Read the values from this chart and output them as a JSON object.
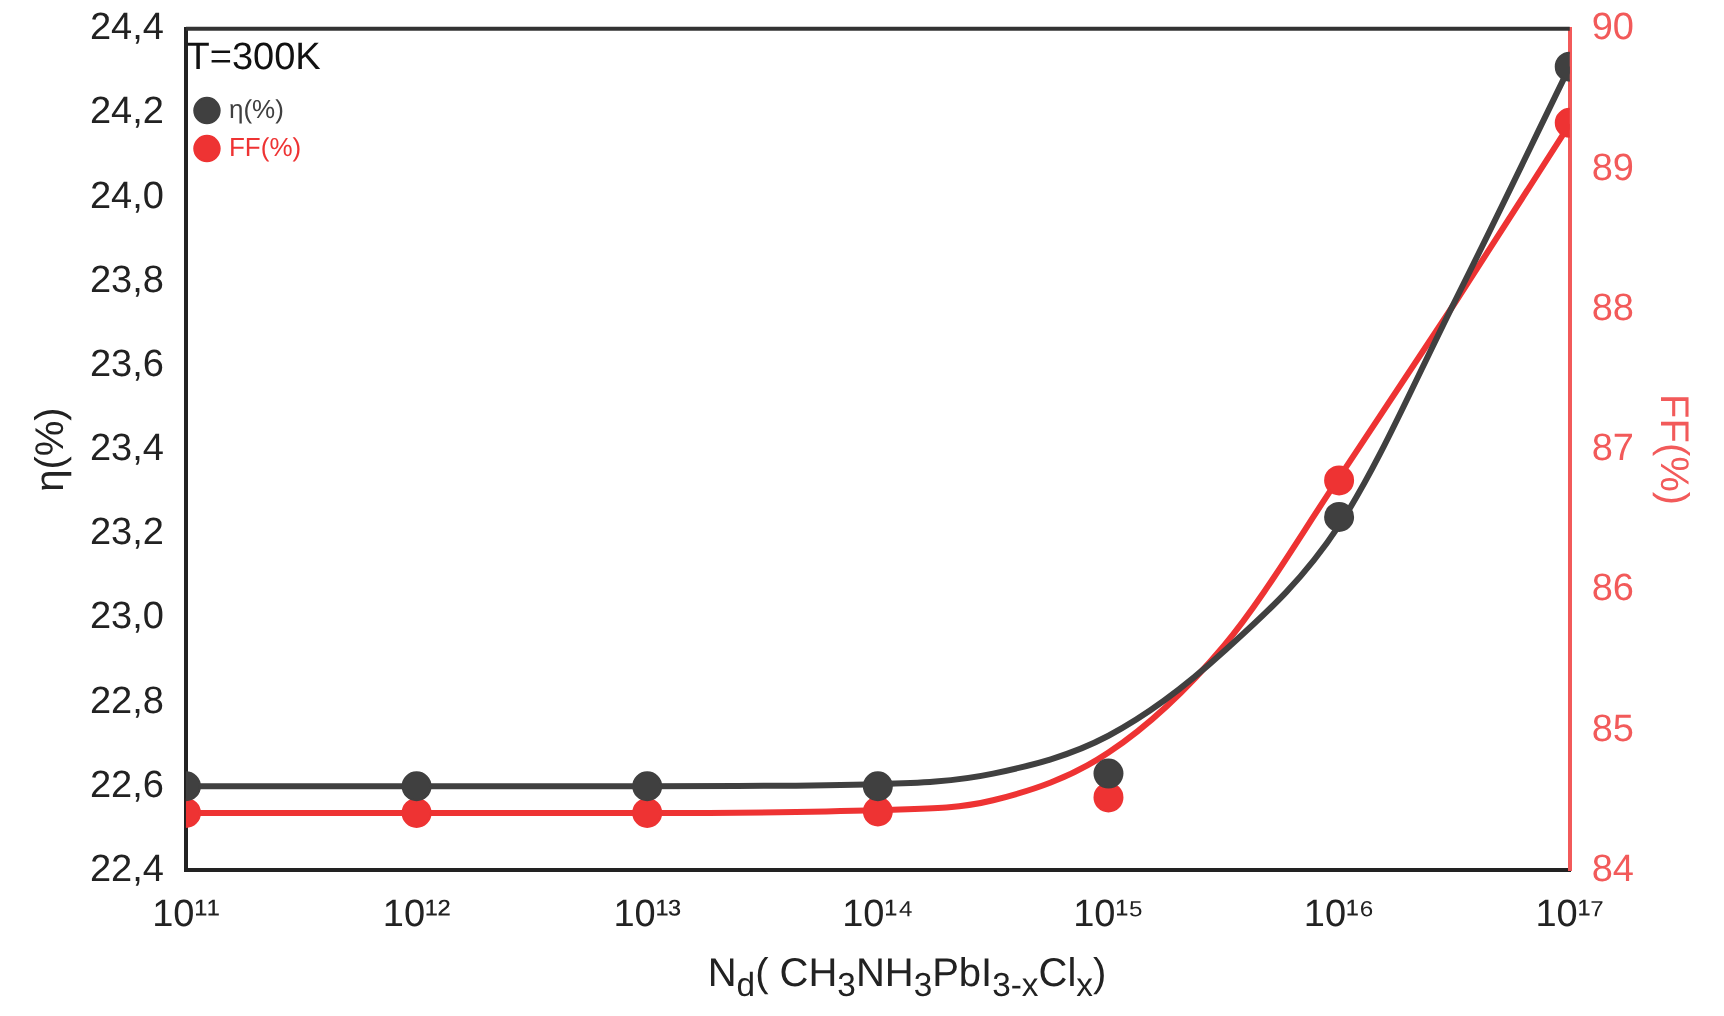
{
  "chart_data": {
    "type": "scatter",
    "xlabel": "N$_{d}$( CH$_{3}$NH$_{3}$PbI$_{3-x}$Cl$_{x}$)",
    "ylabel": "η(%)",
    "y2label": "FF(%)",
    "legend_title": "T=300K",
    "legend": "top left",
    "log": "x",
    "grid": false,
    "x": [
      100000000000.0,
      1000000000000.0,
      10000000000000.0,
      100000000000000.0,
      1000000000000000.0,
      1e+16,
      1e+17
    ],
    "series": [
      {
        "name": "η(%)",
        "color": "#404040",
        "marker": "circle",
        "values": [
          22.6,
          22.6,
          22.6,
          22.6,
          22.63,
          23.24,
          24.31
        ]
      },
      {
        "name": "FF(%)",
        "color": "#ee3333",
        "marker": "circle",
        "axis": "y2",
        "values": [
          84.41,
          84.41,
          84.41,
          84.42,
          84.52,
          86.78,
          89.33
        ]
      },
      {
        "type": "line",
        "color": "#404040",
        "x": [
          100000000000.0,
          1000000000000.0,
          10000000000000.0,
          100000000000000.0,
          316000000000000.0,
          1000000000000000.0,
          3160000000000000.0,
          1e+16,
          3.16e+16,
          1e+17
        ],
        "values": [
          22.6,
          22.6,
          22.6,
          22.605,
          22.63,
          22.72,
          22.92,
          23.22,
          23.75,
          24.31
        ]
      },
      {
        "type": "line",
        "color": "#ee3333",
        "axis": "y2",
        "x": [
          100000000000.0,
          1000000000000.0,
          10000000000000.0,
          100000000000000.0,
          316000000000000.0,
          1000000000000000.0,
          3160000000000000.0,
          1e+16,
          3.16e+16,
          1e+17
        ],
        "values": [
          84.41,
          84.41,
          84.41,
          84.43,
          84.5,
          84.84,
          85.6,
          86.8,
          88.04,
          89.32
        ]
      }
    ],
    "xlim": [
      100000000000.0,
      1e+17
    ],
    "xticks": [
      {
        "value": 100000000000.0,
        "label": "10¹¹"
      },
      {
        "value": 1000000000000.0,
        "label": "10¹²"
      },
      {
        "value": 10000000000000.0,
        "label": "10¹³"
      },
      {
        "value": 100000000000000.0,
        "label": "10¹⁴"
      },
      {
        "value": 1000000000000000.0,
        "label": "10¹⁵"
      },
      {
        "value": 1e+16,
        "label": "10¹⁶"
      },
      {
        "value": 1e+17,
        "label": "10¹⁷"
      }
    ],
    "ylim": [
      22.4,
      24.4
    ],
    "yticks": [
      {
        "value": 22.4,
        "label": "22,4"
      },
      {
        "value": 22.6,
        "label": "22,6"
      },
      {
        "value": 22.8,
        "label": "22,8"
      },
      {
        "value": 23.0,
        "label": "23,0"
      },
      {
        "value": 23.2,
        "label": "23,2"
      },
      {
        "value": 23.4,
        "label": "23,4"
      },
      {
        "value": 23.6,
        "label": "23,6"
      },
      {
        "value": 23.8,
        "label": "23,8"
      },
      {
        "value": 24.0,
        "label": "24,0"
      },
      {
        "value": 24.2,
        "label": "24,2"
      },
      {
        "value": 24.4,
        "label": "24,4"
      }
    ],
    "y2lim": [
      84,
      90
    ],
    "y2ticks": [
      84,
      85,
      86,
      87,
      88,
      89,
      90
    ]
  }
}
